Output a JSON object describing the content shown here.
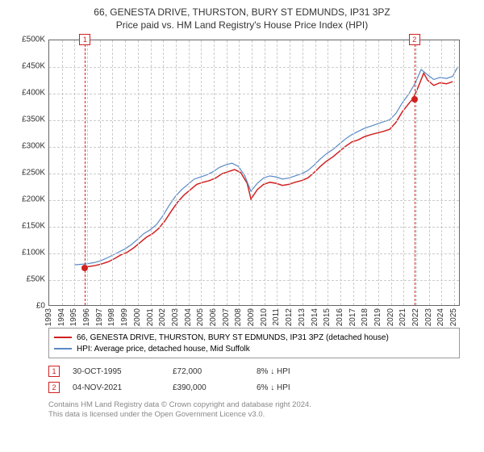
{
  "titles": {
    "line1": "66, GENESTA DRIVE, THURSTON, BURY ST EDMUNDS, IP31 3PZ",
    "line2": "Price paid vs. HM Land Registry's House Price Index (HPI)"
  },
  "chart": {
    "type": "line",
    "x_years": [
      1993,
      1994,
      1995,
      1996,
      1997,
      1998,
      1999,
      2000,
      2001,
      2002,
      2003,
      2004,
      2005,
      2006,
      2007,
      2008,
      2009,
      2010,
      2011,
      2012,
      2013,
      2014,
      2015,
      2016,
      2017,
      2018,
      2019,
      2020,
      2021,
      2022,
      2023,
      2024,
      2025
    ],
    "x_range": [
      1993,
      2025.5
    ],
    "ylim": [
      0,
      500000
    ],
    "ytick_step": 50000,
    "yticks": [
      "£0",
      "£50K",
      "£100K",
      "£150K",
      "£200K",
      "£250K",
      "£300K",
      "£350K",
      "£400K",
      "£450K",
      "£500K"
    ],
    "grid_color": "#cccccc",
    "border_color": "#666666",
    "background_color": "#ffffff",
    "series": [
      {
        "name": "property",
        "label": "66, GENESTA DRIVE, THURSTON, BURY ST EDMUNDS, IP31 3PZ (detached house)",
        "color": "#d02020",
        "width": 1.5,
        "points": [
          [
            1995.8,
            72000
          ],
          [
            1996.2,
            73000
          ],
          [
            1996.7,
            75000
          ],
          [
            1997.2,
            78000
          ],
          [
            1997.7,
            82000
          ],
          [
            1998.2,
            88000
          ],
          [
            1998.7,
            95000
          ],
          [
            1999.2,
            100000
          ],
          [
            1999.7,
            108000
          ],
          [
            2000.2,
            118000
          ],
          [
            2000.7,
            128000
          ],
          [
            2001.2,
            135000
          ],
          [
            2001.7,
            145000
          ],
          [
            2002.2,
            160000
          ],
          [
            2002.7,
            178000
          ],
          [
            2003.2,
            195000
          ],
          [
            2003.7,
            208000
          ],
          [
            2004.2,
            218000
          ],
          [
            2004.7,
            228000
          ],
          [
            2005.2,
            232000
          ],
          [
            2005.7,
            235000
          ],
          [
            2006.2,
            240000
          ],
          [
            2006.7,
            248000
          ],
          [
            2007.2,
            252000
          ],
          [
            2007.7,
            256000
          ],
          [
            2008.2,
            250000
          ],
          [
            2008.7,
            230000
          ],
          [
            2009.0,
            200000
          ],
          [
            2009.5,
            218000
          ],
          [
            2010.0,
            228000
          ],
          [
            2010.5,
            232000
          ],
          [
            2011.0,
            230000
          ],
          [
            2011.5,
            226000
          ],
          [
            2012.0,
            228000
          ],
          [
            2012.5,
            232000
          ],
          [
            2013.0,
            235000
          ],
          [
            2013.5,
            240000
          ],
          [
            2014.0,
            250000
          ],
          [
            2014.5,
            262000
          ],
          [
            2015.0,
            272000
          ],
          [
            2015.5,
            280000
          ],
          [
            2016.0,
            290000
          ],
          [
            2016.5,
            300000
          ],
          [
            2017.0,
            308000
          ],
          [
            2017.5,
            312000
          ],
          [
            2018.0,
            318000
          ],
          [
            2018.5,
            322000
          ],
          [
            2019.0,
            325000
          ],
          [
            2019.5,
            328000
          ],
          [
            2020.0,
            332000
          ],
          [
            2020.5,
            345000
          ],
          [
            2021.0,
            365000
          ],
          [
            2021.5,
            380000
          ],
          [
            2021.85,
            390000
          ],
          [
            2022.2,
            408000
          ],
          [
            2022.7,
            438000
          ],
          [
            2023.0,
            425000
          ],
          [
            2023.5,
            415000
          ],
          [
            2024.0,
            420000
          ],
          [
            2024.5,
            418000
          ],
          [
            2025.0,
            422000
          ]
        ]
      },
      {
        "name": "hpi",
        "label": "HPI: Average price, detached house, Mid Suffolk",
        "color": "#5a8ac6",
        "width": 1.2,
        "points": [
          [
            1995.0,
            76000
          ],
          [
            1995.5,
            77000
          ],
          [
            1996.0,
            78000
          ],
          [
            1996.5,
            80000
          ],
          [
            1997.0,
            83000
          ],
          [
            1997.5,
            88000
          ],
          [
            1998.0,
            94000
          ],
          [
            1998.5,
            100000
          ],
          [
            1999.0,
            106000
          ],
          [
            1999.5,
            114000
          ],
          [
            2000.0,
            124000
          ],
          [
            2000.5,
            135000
          ],
          [
            2001.0,
            142000
          ],
          [
            2001.5,
            152000
          ],
          [
            2002.0,
            168000
          ],
          [
            2002.5,
            188000
          ],
          [
            2003.0,
            205000
          ],
          [
            2003.5,
            218000
          ],
          [
            2004.0,
            228000
          ],
          [
            2004.5,
            238000
          ],
          [
            2005.0,
            242000
          ],
          [
            2005.5,
            246000
          ],
          [
            2006.0,
            252000
          ],
          [
            2006.5,
            260000
          ],
          [
            2007.0,
            265000
          ],
          [
            2007.5,
            268000
          ],
          [
            2008.0,
            262000
          ],
          [
            2008.5,
            245000
          ],
          [
            2009.0,
            215000
          ],
          [
            2009.5,
            230000
          ],
          [
            2010.0,
            240000
          ],
          [
            2010.5,
            244000
          ],
          [
            2011.0,
            242000
          ],
          [
            2011.5,
            238000
          ],
          [
            2012.0,
            240000
          ],
          [
            2012.5,
            244000
          ],
          [
            2013.0,
            248000
          ],
          [
            2013.5,
            254000
          ],
          [
            2014.0,
            264000
          ],
          [
            2014.5,
            276000
          ],
          [
            2015.0,
            286000
          ],
          [
            2015.5,
            294000
          ],
          [
            2016.0,
            304000
          ],
          [
            2016.5,
            314000
          ],
          [
            2017.0,
            322000
          ],
          [
            2017.5,
            328000
          ],
          [
            2018.0,
            334000
          ],
          [
            2018.5,
            338000
          ],
          [
            2019.0,
            342000
          ],
          [
            2019.5,
            346000
          ],
          [
            2020.0,
            350000
          ],
          [
            2020.5,
            362000
          ],
          [
            2021.0,
            382000
          ],
          [
            2021.5,
            398000
          ],
          [
            2022.0,
            418000
          ],
          [
            2022.5,
            445000
          ],
          [
            2023.0,
            435000
          ],
          [
            2023.5,
            426000
          ],
          [
            2024.0,
            430000
          ],
          [
            2024.5,
            428000
          ],
          [
            2025.0,
            432000
          ],
          [
            2025.4,
            450000
          ]
        ]
      }
    ],
    "markers": [
      {
        "id": "1",
        "year": 1995.83,
        "value": 72000
      },
      {
        "id": "2",
        "year": 2021.85,
        "value": 390000
      }
    ]
  },
  "legend": {
    "items": [
      {
        "color": "#d02020",
        "label": "66, GENESTA DRIVE, THURSTON, BURY ST EDMUNDS, IP31 3PZ (detached house)"
      },
      {
        "color": "#5a8ac6",
        "label": "HPI: Average price, detached house, Mid Suffolk"
      }
    ]
  },
  "transactions": [
    {
      "id": "1",
      "date": "30-OCT-1995",
      "price": "£72,000",
      "pct": "8% ↓ HPI"
    },
    {
      "id": "2",
      "date": "04-NOV-2021",
      "price": "£390,000",
      "pct": "6% ↓ HPI"
    }
  ],
  "attribution": {
    "line1": "Contains HM Land Registry data © Crown copyright and database right 2024.",
    "line2": "This data is licensed under the Open Government Licence v3.0."
  }
}
